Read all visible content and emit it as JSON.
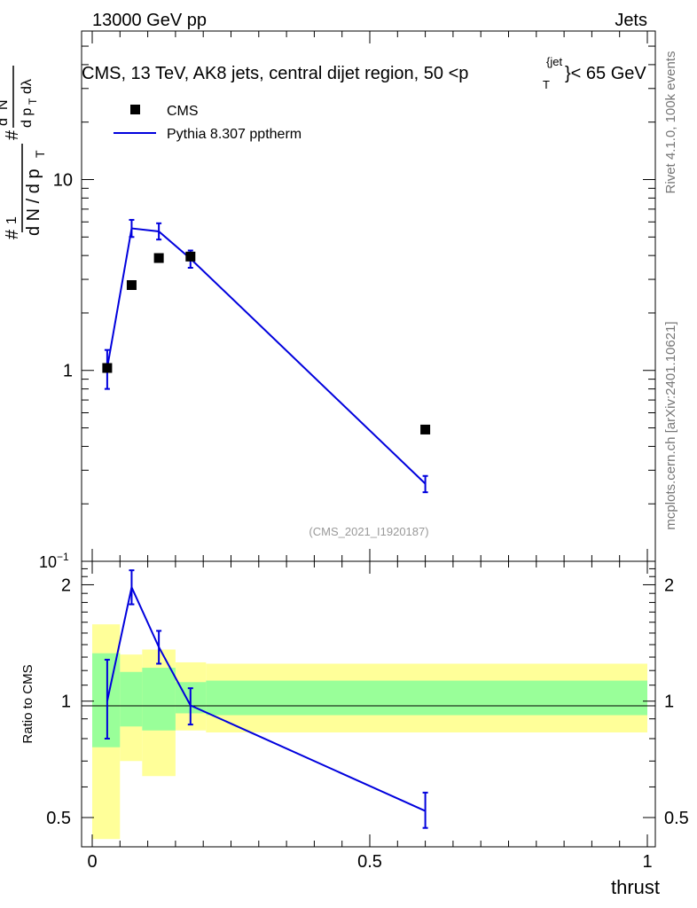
{
  "header": {
    "left": "13000 GeV pp",
    "right": "Jets"
  },
  "plot_title": "CMS, 13 TeV, AK8 jets, central dijet region, 50 <p",
  "plot_title_sup": "{jet",
  "plot_title_sub": "T",
  "plot_title_tail": "}< 65 GeV",
  "side_labels": {
    "rivet": "Rivet 4.1.0,  100k events",
    "mcplots": "mcplots.cern.ch [arXiv:2401.10621]"
  },
  "analysis_id": "(CMS_2021_I1920187)",
  "legend": {
    "data_label": "CMS",
    "mc_label": "Pythia 8.307 pptherm"
  },
  "ylabel_top": "1/(dN/dpT) dN/(dpT dλ)",
  "ylabel_ratio": "Ratio to CMS",
  "xlabel": "thrust",
  "colors": {
    "data": "#000000",
    "mc": "#0000dd",
    "band_inner": "#99ff99",
    "band_outer": "#ffff99"
  },
  "chart_data": [
    {
      "type": "scatter",
      "panel": "main",
      "yscale": "log",
      "xlim": [
        0,
        1
      ],
      "ylim": [
        0.1,
        60
      ],
      "yticks": [
        {
          "value": 1,
          "label": "1"
        },
        {
          "value": 10,
          "label": "10"
        }
      ],
      "ytick_min_label": "10",
      "ytick_min_exp": "−1",
      "series": [
        {
          "name": "CMS",
          "style": "markers",
          "points": [
            {
              "x": 0.027,
              "y": 1.03
            },
            {
              "x": 0.071,
              "y": 2.8
            },
            {
              "x": 0.12,
              "y": 3.88
            },
            {
              "x": 0.177,
              "y": 3.95
            },
            {
              "x": 0.6,
              "y": 0.49
            }
          ]
        },
        {
          "name": "Pythia 8.307 pptherm",
          "style": "line",
          "points": [
            {
              "x": 0.027,
              "y": 1.03,
              "lo": 0.8,
              "hi": 1.28
            },
            {
              "x": 0.071,
              "y": 5.55,
              "lo": 5.0,
              "hi": 6.15
            },
            {
              "x": 0.12,
              "y": 5.35,
              "lo": 4.85,
              "hi": 5.9
            },
            {
              "x": 0.177,
              "y": 3.85,
              "lo": 3.45,
              "hi": 4.25
            },
            {
              "x": 0.6,
              "y": 0.255,
              "lo": 0.23,
              "hi": 0.28
            }
          ]
        }
      ]
    },
    {
      "type": "line",
      "panel": "ratio",
      "ylim": [
        0.42,
        2.3
      ],
      "yscale": "log",
      "yticks": [
        {
          "value": 0.5,
          "label": "0.5"
        },
        {
          "value": 1,
          "label": "1"
        },
        {
          "value": 2,
          "label": "2"
        }
      ],
      "xticks": [
        {
          "value": 0,
          "label": "0"
        },
        {
          "value": 0.5,
          "label": "0.5"
        },
        {
          "value": 1,
          "label": "1"
        }
      ],
      "bands": [
        {
          "x0": 0.0,
          "x1": 0.05,
          "in_lo": 0.76,
          "in_hi": 1.33,
          "out_lo": 0.44,
          "out_hi": 1.58
        },
        {
          "x0": 0.05,
          "x1": 0.09,
          "in_lo": 0.86,
          "in_hi": 1.19,
          "out_lo": 0.7,
          "out_hi": 1.32
        },
        {
          "x0": 0.09,
          "x1": 0.15,
          "in_lo": 0.84,
          "in_hi": 1.22,
          "out_lo": 0.64,
          "out_hi": 1.36
        },
        {
          "x0": 0.15,
          "x1": 0.205,
          "in_lo": 0.93,
          "in_hi": 1.12,
          "out_lo": 0.84,
          "out_hi": 1.26
        },
        {
          "x0": 0.205,
          "x1": 1.0,
          "in_lo": 0.92,
          "in_hi": 1.13,
          "out_lo": 0.83,
          "out_hi": 1.25
        }
      ],
      "series": [
        {
          "name": "Pythia / CMS",
          "points": [
            {
              "x": 0.027,
              "y": 1.0,
              "lo": 0.8,
              "hi": 1.28
            },
            {
              "x": 0.071,
              "y": 1.97,
              "lo": 1.78,
              "hi": 2.18
            },
            {
              "x": 0.12,
              "y": 1.38,
              "lo": 1.25,
              "hi": 1.52
            },
            {
              "x": 0.177,
              "y": 0.975,
              "lo": 0.87,
              "hi": 1.08
            },
            {
              "x": 0.6,
              "y": 0.52,
              "lo": 0.47,
              "hi": 0.58
            }
          ]
        }
      ]
    }
  ]
}
